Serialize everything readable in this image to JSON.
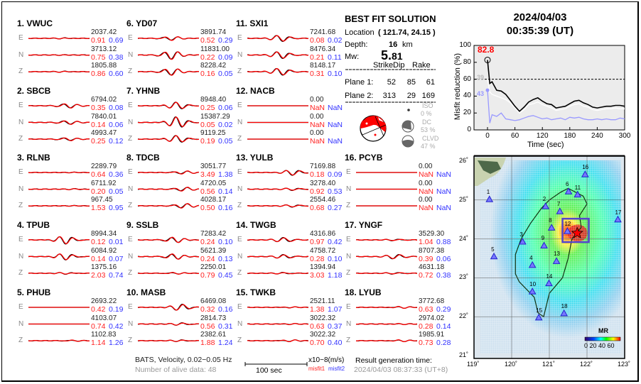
{
  "header": {
    "date": "2024/04/03",
    "time": "00:35:39  (UT)"
  },
  "solution": {
    "title": "BEST FIT SOLUTION",
    "location_label": "Location",
    "location_value": "( 121.74,  24.15 )",
    "depth_label": "Depth:",
    "depth_value": "16",
    "depth_unit": "km",
    "mw_label": "Mw:",
    "mw_int": "5.",
    "mw_dec": "81",
    "table": {
      "headers": [
        "Strike",
        "Dip",
        "Rake"
      ],
      "rows": [
        {
          "label": "Plane 1:",
          "values": [
            "52",
            "85",
            "61"
          ]
        },
        {
          "label": "Plane 2:",
          "values": [
            "313",
            "29",
            "169"
          ]
        }
      ]
    },
    "components": [
      {
        "label": "ISO",
        "value": "0 %"
      },
      {
        "label": "DC",
        "value": "53 %"
      },
      {
        "label": "CLVD",
        "value": "47 %"
      }
    ]
  },
  "stations": [
    {
      "title": "1.  VWUC",
      "comps": [
        [
          "E",
          "2037.42",
          "0.91",
          "0.69"
        ],
        [
          "N",
          "3713.12",
          "0.75",
          "0.38"
        ],
        [
          "Z",
          "1805.88",
          "0.86",
          "0.60"
        ]
      ]
    },
    {
      "title": "2.  SBCB",
      "comps": [
        [
          "E",
          "6794.02",
          "0.35",
          "0.08"
        ],
        [
          "N",
          "7840.01",
          "0.14",
          "0.06"
        ],
        [
          "Z",
          "4993.47",
          "0.25",
          "0.12"
        ]
      ]
    },
    {
      "title": "3.  RLNB",
      "comps": [
        [
          "E",
          "2289.79",
          "0.64",
          "0.36"
        ],
        [
          "N",
          "6711.92",
          "0.20",
          "0.05"
        ],
        [
          "Z",
          "967.45",
          "1.53",
          "0.95"
        ]
      ]
    },
    {
      "title": "4.  TPUB",
      "comps": [
        [
          "E",
          "8994.34",
          "0.12",
          "0.01"
        ],
        [
          "N",
          "6084.92",
          "0.14",
          "0.07"
        ],
        [
          "Z",
          "1375.16",
          "2.03",
          "0.74"
        ]
      ]
    },
    {
      "title": "5.  PHUB",
      "comps": [
        [
          "E",
          "2693.22",
          "0.42",
          "0.19"
        ],
        [
          "N",
          "4103.07",
          "0.74",
          "0.42"
        ],
        [
          "Z",
          "1102.83",
          "1.14",
          "1.26"
        ]
      ]
    },
    {
      "title": "6.  YD07",
      "comps": [
        [
          "E",
          "3891.74",
          "0.52",
          "0.29"
        ],
        [
          "N",
          "11831.00",
          "0.22",
          "0.09"
        ],
        [
          "Z",
          "8228.42",
          "0.16",
          "0.05"
        ]
      ]
    },
    {
      "title": "7.  YHNB",
      "comps": [
        [
          "E",
          "8948.40",
          "0.25",
          "0.06"
        ],
        [
          "N",
          "15387.29",
          "0.05",
          "0.02"
        ],
        [
          "Z",
          "9119.25",
          "0.19",
          "0.05"
        ]
      ]
    },
    {
      "title": "8.  TDCB",
      "comps": [
        [
          "E",
          "3051.77",
          "3.49",
          "1.38"
        ],
        [
          "N",
          "4720.05",
          "0.56",
          "0.14"
        ],
        [
          "Z",
          "4028.17",
          "0.50",
          "0.16"
        ]
      ]
    },
    {
      "title": "9.  SSLB",
      "comps": [
        [
          "E",
          "7283.42",
          "0.24",
          "0.10"
        ],
        [
          "N",
          "5621.39",
          "0.24",
          "0.13"
        ],
        [
          "Z",
          "2250.01",
          "0.79",
          "0.45"
        ]
      ]
    },
    {
      "title": "10. MASB",
      "comps": [
        [
          "E",
          "6469.08",
          "0.32",
          "0.16"
        ],
        [
          "N",
          "2814.73",
          "0.56",
          "0.31"
        ],
        [
          "Z",
          "2382.61",
          "1.88",
          "1.24"
        ]
      ]
    },
    {
      "title": "11. SXI1",
      "comps": [
        [
          "E",
          "7241.68",
          "0.08",
          "0.02"
        ],
        [
          "N",
          "8476.34",
          "0.21",
          "0.11"
        ],
        [
          "Z",
          "8148.17",
          "0.31",
          "0.10"
        ]
      ]
    },
    {
      "title": "12. NACB",
      "comps": [
        [
          "E",
          "0.00",
          "NaN",
          "NaN"
        ],
        [
          "N",
          "0.00",
          "NaN",
          "NaN"
        ],
        [
          "Z",
          "0.00",
          "NaN",
          "NaN"
        ]
      ]
    },
    {
      "title": "13. YULB",
      "comps": [
        [
          "E",
          "7169.88",
          "0.18",
          "0.09"
        ],
        [
          "N",
          "3278.40",
          "0.92",
          "0.53"
        ],
        [
          "Z",
          "2554.46",
          "0.68",
          "0.27"
        ]
      ]
    },
    {
      "title": "14. TWGB",
      "comps": [
        [
          "E",
          "4316.86",
          "0.97",
          "0.42"
        ],
        [
          "N",
          "4758.72",
          "0.28",
          "0.10"
        ],
        [
          "Z",
          "1394.94",
          "3.03",
          "1.18"
        ]
      ]
    },
    {
      "title": "15. TWKB",
      "comps": [
        [
          "E",
          "2521.11",
          "1.38",
          "1.07"
        ],
        [
          "N",
          "3022.32",
          "0.63",
          "0.37"
        ],
        [
          "Z",
          "3022.32",
          "0.70",
          "0.40"
        ]
      ]
    },
    {
      "title": "16. PCYB",
      "comps": [
        [
          "E",
          "0.00",
          "NaN",
          "NaN"
        ],
        [
          "N",
          "0.00",
          "NaN",
          "NaN"
        ],
        [
          "Z",
          "0.00",
          "NaN",
          "NaN"
        ]
      ]
    },
    {
      "title": "17. YNGF",
      "comps": [
        [
          "E",
          "3529.30",
          "1.04",
          "0.88"
        ],
        [
          "N",
          "8707.38",
          "0.39",
          "0.06"
        ],
        [
          "Z",
          "4631.18",
          "0.72",
          "0.38"
        ]
      ]
    },
    {
      "title": "18. LYUB",
      "comps": [
        [
          "E",
          "3772.68",
          "0.63",
          "0.29"
        ],
        [
          "N",
          "2974.02",
          "0.28",
          "0.14"
        ],
        [
          "Z",
          "1985.91",
          "0.73",
          "0.28"
        ]
      ]
    }
  ],
  "footer": {
    "filter": "BATS, Velocity, 0.02−0.05 Hz",
    "alive": "Number of alive data: 48",
    "scale": "100 sec",
    "unit": "x10−8(m/s)",
    "misfit1": "misfit1",
    "misfit2": "misfit2",
    "gen_label": "Result generation time:",
    "gen_time": "2024/04/03 08:37:33 (UT+8)"
  },
  "colors": {
    "observed": "#000000",
    "synthetic": "#ff0000",
    "misfit1": "#ff2222",
    "misfit2": "#3333ff",
    "star": "#ff0000",
    "station": "#4444ff"
  },
  "chart_data": {
    "type": "line",
    "xlabel": "Time (sec)",
    "ylabel": "Misfit reduction (%)",
    "xlim": [
      -30,
      300
    ],
    "ylim": [
      0,
      100
    ],
    "xticks": [
      "0",
      "60",
      "120",
      "180",
      "240",
      "300"
    ],
    "yticks": [
      "0",
      "20",
      "40",
      "60",
      "80",
      "100"
    ],
    "threshold": 60,
    "peak_label": "82.8",
    "white_label": "39",
    "blue_label": "43",
    "x": [
      0,
      5,
      10,
      20,
      30,
      40,
      50,
      60,
      70,
      80,
      90,
      100,
      110,
      120,
      130,
      140,
      150,
      160,
      170,
      180,
      190,
      200,
      210,
      220,
      230,
      240,
      250,
      260,
      270,
      280,
      290,
      300
    ],
    "series": [
      {
        "color": "#000000",
        "values": [
          82.8,
          55,
          57,
          47,
          46,
          42,
          35,
          28,
          22,
          27,
          33,
          36,
          38,
          34,
          31,
          30,
          26,
          27,
          28,
          31,
          34,
          35,
          32,
          30,
          27,
          26,
          27,
          28,
          28,
          29,
          29,
          28
        ]
      },
      {
        "color": "#ffffff",
        "values": [
          60,
          45,
          42,
          40,
          38,
          36,
          32,
          26,
          20,
          24,
          30,
          31,
          33,
          30,
          28,
          26,
          23,
          24,
          25,
          28,
          30,
          31,
          28,
          27,
          24,
          23,
          24,
          25,
          25,
          26,
          25,
          25
        ]
      },
      {
        "color": "#9999ff",
        "values": [
          47,
          8,
          18,
          16,
          20,
          13,
          12,
          11,
          12,
          14,
          16,
          17,
          15,
          13,
          14,
          12,
          13,
          14,
          12,
          15,
          14,
          15,
          13,
          12,
          12,
          13,
          12,
          13,
          12,
          12,
          14,
          13
        ]
      }
    ]
  },
  "map": {
    "lon_ticks": [
      "119˚",
      "120˚",
      "121˚",
      "122˚",
      "123˚"
    ],
    "lat_ticks": [
      "26˚",
      "25˚",
      "24˚",
      "23˚",
      "22˚",
      "21˚"
    ],
    "colorbar_title": "MR",
    "colorbar_ticks": "0 20 40 60",
    "epicenter": [
      121.74,
      24.15
    ],
    "stations": [
      [
        "1",
        119.41,
        25.01
      ],
      [
        "2",
        120.9,
        24.83
      ],
      [
        "3",
        120.29,
        23.92
      ],
      [
        "4",
        120.55,
        23.32
      ],
      [
        "5",
        119.53,
        23.54
      ],
      [
        "6",
        121.51,
        25.21
      ],
      [
        "7",
        121.28,
        24.7
      ],
      [
        "8",
        121.06,
        24.28
      ],
      [
        "9",
        120.86,
        23.82
      ],
      [
        "10",
        120.55,
        22.64
      ],
      [
        "11",
        121.75,
        25.13
      ],
      [
        "12",
        121.48,
        24.19
      ],
      [
        "13",
        121.19,
        23.42
      ],
      [
        "14",
        120.99,
        22.85
      ],
      [
        "15",
        120.72,
        21.97
      ],
      [
        "16",
        121.95,
        25.65
      ],
      [
        "17",
        122.82,
        24.49
      ],
      [
        "18",
        121.39,
        22.08
      ]
    ]
  }
}
